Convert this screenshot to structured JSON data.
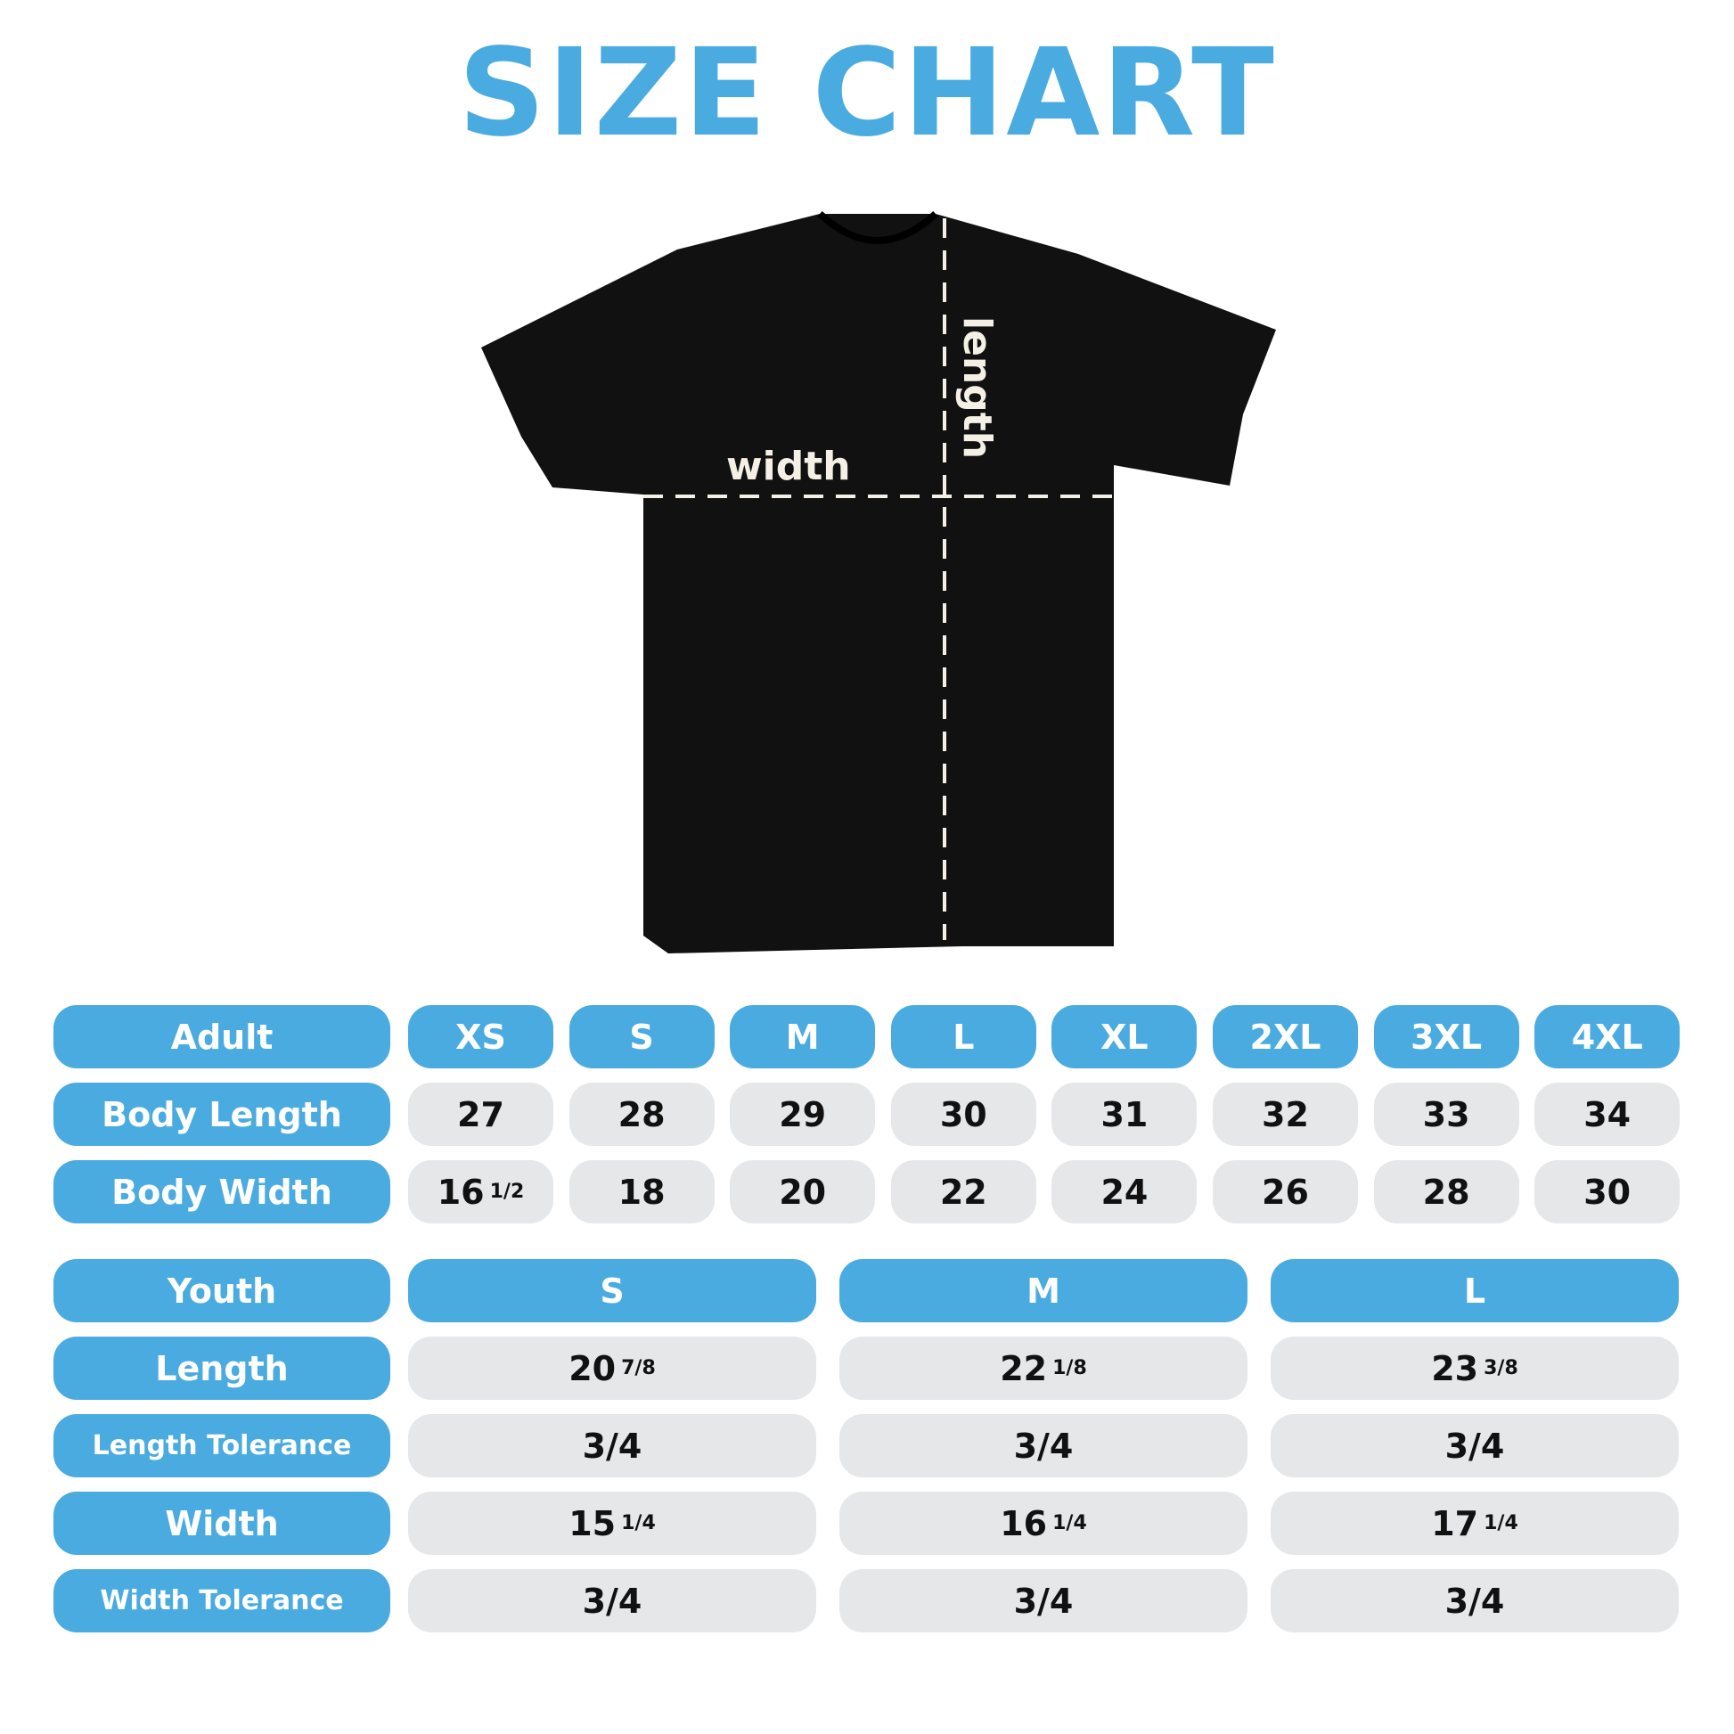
{
  "title": "SIZE CHART",
  "shirt": {
    "width_label": "width",
    "length_label": "length",
    "color": "#111111"
  },
  "colors": {
    "header": "#4aabe0",
    "cell": "#e6e7e9"
  },
  "adult": {
    "header": "Adult",
    "sizes": [
      "XS",
      "S",
      "M",
      "L",
      "XL",
      "2XL",
      "3XL",
      "4XL"
    ],
    "rows": [
      {
        "label": "Body Length",
        "values": [
          [
            "27",
            ""
          ],
          [
            "28",
            ""
          ],
          [
            "29",
            ""
          ],
          [
            "30",
            ""
          ],
          [
            "31",
            ""
          ],
          [
            "32",
            ""
          ],
          [
            "33",
            ""
          ],
          [
            "34",
            ""
          ]
        ]
      },
      {
        "label": "Body Width",
        "values": [
          [
            "16",
            "1/2"
          ],
          [
            "18",
            ""
          ],
          [
            "20",
            ""
          ],
          [
            "22",
            ""
          ],
          [
            "24",
            ""
          ],
          [
            "26",
            ""
          ],
          [
            "28",
            ""
          ],
          [
            "30",
            ""
          ]
        ]
      }
    ]
  },
  "youth": {
    "header": "Youth",
    "sizes": [
      "S",
      "M",
      "L"
    ],
    "rows": [
      {
        "label": "Length",
        "values": [
          [
            "20",
            "7/8"
          ],
          [
            "22",
            "1/8"
          ],
          [
            "23",
            "3/8"
          ]
        ]
      },
      {
        "label": "Length Tolerance",
        "values": [
          [
            "3/4",
            ""
          ],
          [
            "3/4",
            ""
          ],
          [
            "3/4",
            ""
          ]
        ]
      },
      {
        "label": "Width",
        "values": [
          [
            "15",
            "1/4"
          ],
          [
            "16",
            "1/4"
          ],
          [
            "17",
            "1/4"
          ]
        ]
      },
      {
        "label": "Width Tolerance",
        "values": [
          [
            "3/4",
            ""
          ],
          [
            "3/4",
            ""
          ],
          [
            "3/4",
            ""
          ]
        ]
      }
    ]
  }
}
